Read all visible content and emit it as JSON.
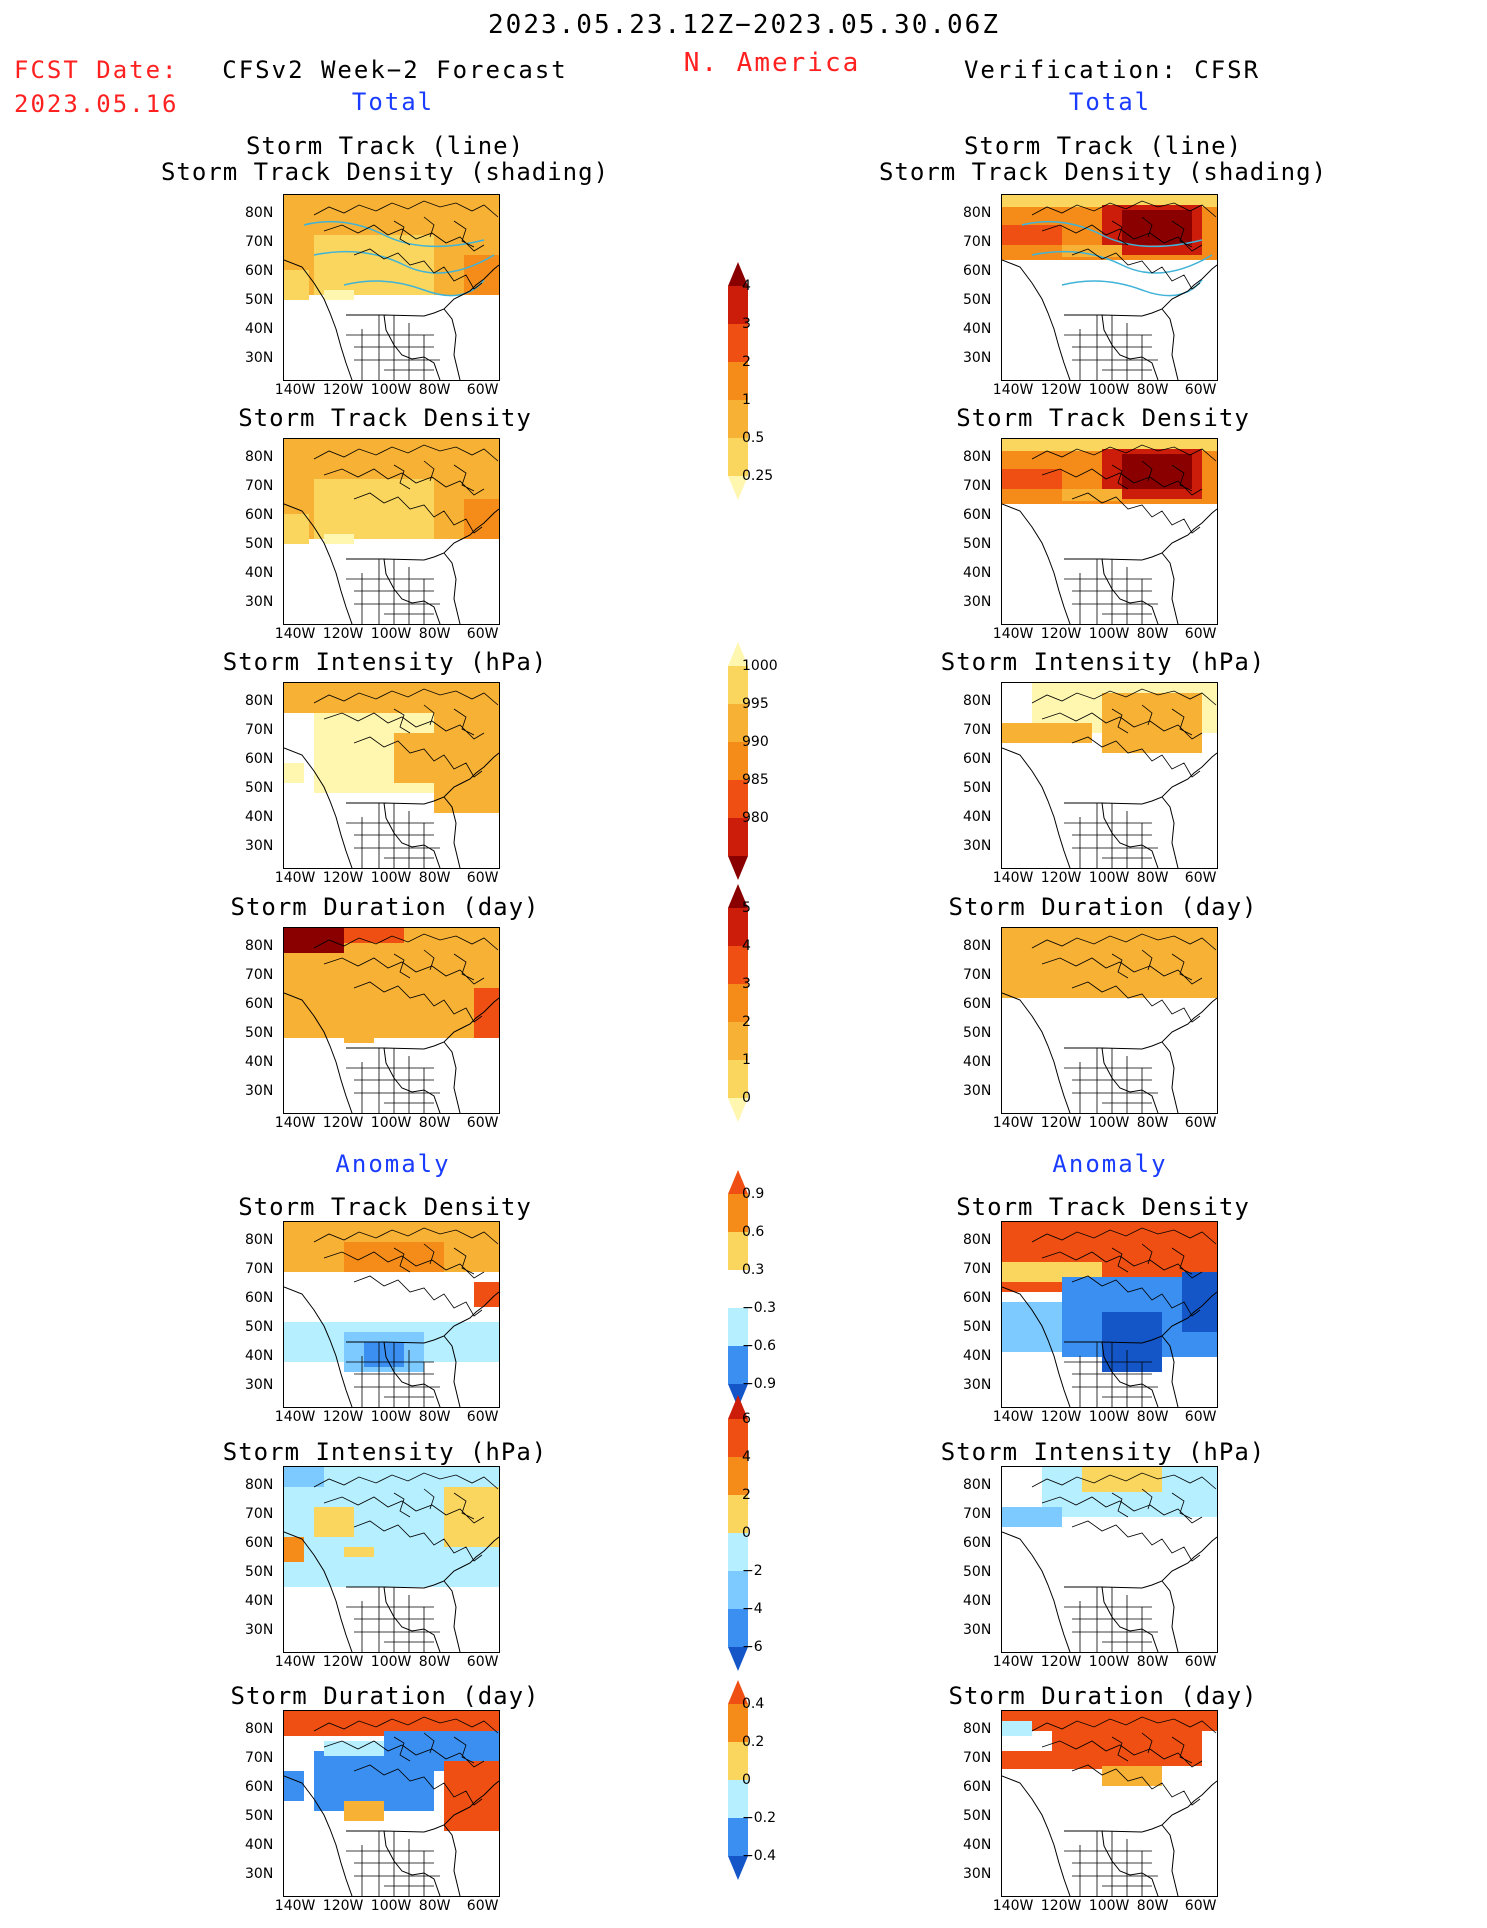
{
  "header": {
    "period": "2023.05.23.12Z−2023.05.30.06Z",
    "region": "N. America",
    "fcst_label": "FCST Date:",
    "fcst_date": "2023.05.16",
    "model": "CFSv2 Week−2 Forecast",
    "verification": "Verification: CFSR",
    "total_left": "Total",
    "total_right": "Total",
    "anomaly_left": "Anomaly",
    "anomaly_right": "Anomaly"
  },
  "panels": {
    "p1_line1": "Storm Track (line)",
    "p1_line2": "Storm Track Density (shading)",
    "density": "Storm Track Density",
    "intensity": "Storm Intensity (hPa)",
    "duration": "Storm Duration (day)"
  },
  "axes": {
    "lat": [
      "80N",
      "70N",
      "60N",
      "50N",
      "40N",
      "30N"
    ],
    "lon": [
      "140W",
      "120W",
      "100W",
      "80W",
      "60W"
    ]
  },
  "colorbars": {
    "density_total": [
      "4",
      "3",
      "2",
      "1",
      "0.5",
      "0.25"
    ],
    "intensity_total": [
      "1000",
      "995",
      "990",
      "985",
      "980"
    ],
    "duration_total": [
      "5",
      "4",
      "3",
      "2",
      "1",
      "0"
    ],
    "density_anom": [
      "0.9",
      "0.6",
      "0.3",
      "−0.3",
      "−0.6",
      "−0.9"
    ],
    "intensity_anom": [
      "6",
      "4",
      "2",
      "0",
      "−2",
      "−4",
      "−6"
    ],
    "duration_anom": [
      "0.4",
      "0.2",
      "0",
      "−0.2",
      "−0.4"
    ]
  },
  "colors": {
    "c1": "#fff7b0",
    "c2": "#fad65e",
    "c3": "#f7b135",
    "c4": "#f58c1a",
    "c5": "#ef4f12",
    "c6": "#cc1c0a",
    "c7": "#8a0000",
    "b1": "#b6efff",
    "b2": "#7ccaff",
    "b3": "#3a8ff0",
    "b4": "#1456c8",
    "track": "#3fb3d8"
  }
}
